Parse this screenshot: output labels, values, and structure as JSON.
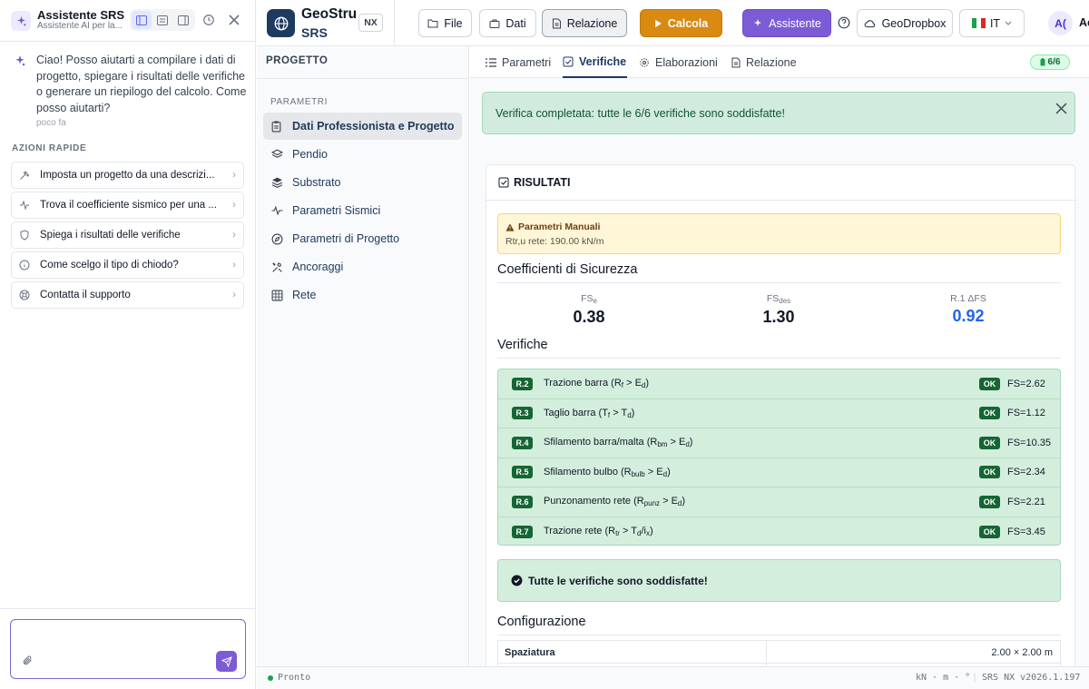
{
  "assistant": {
    "title": "Assistente SRS",
    "subtitle": "Assistente AI per la...",
    "greeting": "Ciao! Posso aiutarti a compilare i dati di progetto, spiegare i risultati delle verifiche o generare un riepilogo del calcolo. Come posso aiutarti?",
    "time": "poco fa",
    "quick_title": "AZIONI RAPIDE",
    "quick_actions": [
      {
        "label": "Imposta un progetto da una descrizi...",
        "icon": "magic-wand-icon"
      },
      {
        "label": "Trova il coefficiente sismico per una ...",
        "icon": "activity-icon"
      },
      {
        "label": "Spiega i risultati delle verifiche",
        "icon": "shield-icon"
      },
      {
        "label": "Come scelgo il tipo di chiodo?",
        "icon": "info-icon"
      },
      {
        "label": "Contatta il supporto",
        "icon": "lifebuoy-icon"
      }
    ],
    "input_value": ""
  },
  "topbar": {
    "brand1": "GeoStru",
    "brand2": "SRS",
    "edition": "NX",
    "file": "File",
    "dati": "Dati",
    "relazione": "Relazione",
    "calcola": "Calcola",
    "assistente": "Assistente",
    "dropbox": "GeoDropbox",
    "lang": "IT",
    "avatar": "A(",
    "user": "Ac"
  },
  "nav": {
    "header": "PROGETTO",
    "section": "PARAMETRI",
    "items": [
      {
        "label": "Dati Professionista e Progetto",
        "icon": "clipboard-icon"
      },
      {
        "label": "Pendio",
        "icon": "layers-icon"
      },
      {
        "label": "Substrato",
        "icon": "stack-icon"
      },
      {
        "label": "Parametri Sismici",
        "icon": "pulse-icon"
      },
      {
        "label": "Parametri di Progetto",
        "icon": "compass-icon"
      },
      {
        "label": "Ancoraggi",
        "icon": "tools-icon"
      },
      {
        "label": "Rete",
        "icon": "grid-icon"
      }
    ]
  },
  "tabs": [
    {
      "label": "Parametri",
      "icon": "list-icon"
    },
    {
      "label": "Verifiche",
      "icon": "checkbox-icon"
    },
    {
      "label": "Elaborazioni",
      "icon": "gear-icon"
    },
    {
      "label": "Relazione",
      "icon": "document-icon"
    }
  ],
  "progress_badge": "6/6",
  "alert": "Verifica completata: tutte le 6/6 verifiche sono soddisfatte!",
  "results": {
    "title": "RISULTATI",
    "warn_title": "Parametri Manuali",
    "warn_text": "Rtr,u rete: 190.00 kN/m",
    "coeff_title": "Coefficienti di Sicurezza",
    "coeffs": [
      {
        "label": "FS",
        "sub": "e",
        "value": "0.38"
      },
      {
        "label": "FS",
        "sub": "des",
        "value": "1.30"
      },
      {
        "label": "R.1 ΔFS",
        "sub": "",
        "value": "0.92"
      }
    ],
    "verif_title": "Verifiche",
    "checks": [
      {
        "code": "R.2",
        "html": "Trazione barra (R<sub>f</sub> &gt; E<sub>d</sub>)",
        "status": "OK",
        "fs": "FS=2.62"
      },
      {
        "code": "R.3",
        "html": "Taglio barra (T<sub>f</sub> &gt; T<sub>d</sub>)",
        "status": "OK",
        "fs": "FS=1.12"
      },
      {
        "code": "R.4",
        "html": "Sfilamento barra/malta (R<sub>bm</sub> &gt; E<sub>d</sub>)",
        "status": "OK",
        "fs": "FS=10.35"
      },
      {
        "code": "R.5",
        "html": "Sfilamento bulbo (R<sub>bulb</sub> &gt; E<sub>d</sub>)",
        "status": "OK",
        "fs": "FS=2.34"
      },
      {
        "code": "R.6",
        "html": "Punzonamento rete (R<sub>punz</sub> &gt; E<sub>d</sub>)",
        "status": "OK",
        "fs": "FS=2.21"
      },
      {
        "code": "R.7",
        "html": "Trazione rete (R<sub>tr</sub> &gt; T<sub>d</sub>/i<sub>x</sub>)",
        "status": "OK",
        "fs": "FS=3.45"
      }
    ],
    "all_ok": "Tutte le verifiche sono soddisfatte!",
    "config_title": "Configurazione",
    "config_rows": [
      {
        "key": "Spaziatura",
        "value": "2.00 × 2.00 m"
      }
    ]
  },
  "status": {
    "ready": "Pronto",
    "units": "kN · m · °",
    "version": "SRS NX v2026.1.197"
  },
  "colors": {
    "accent": "#7c5cd6",
    "brand": "#1e3a5f",
    "calc": "#d98a13",
    "ok": "#166534"
  }
}
